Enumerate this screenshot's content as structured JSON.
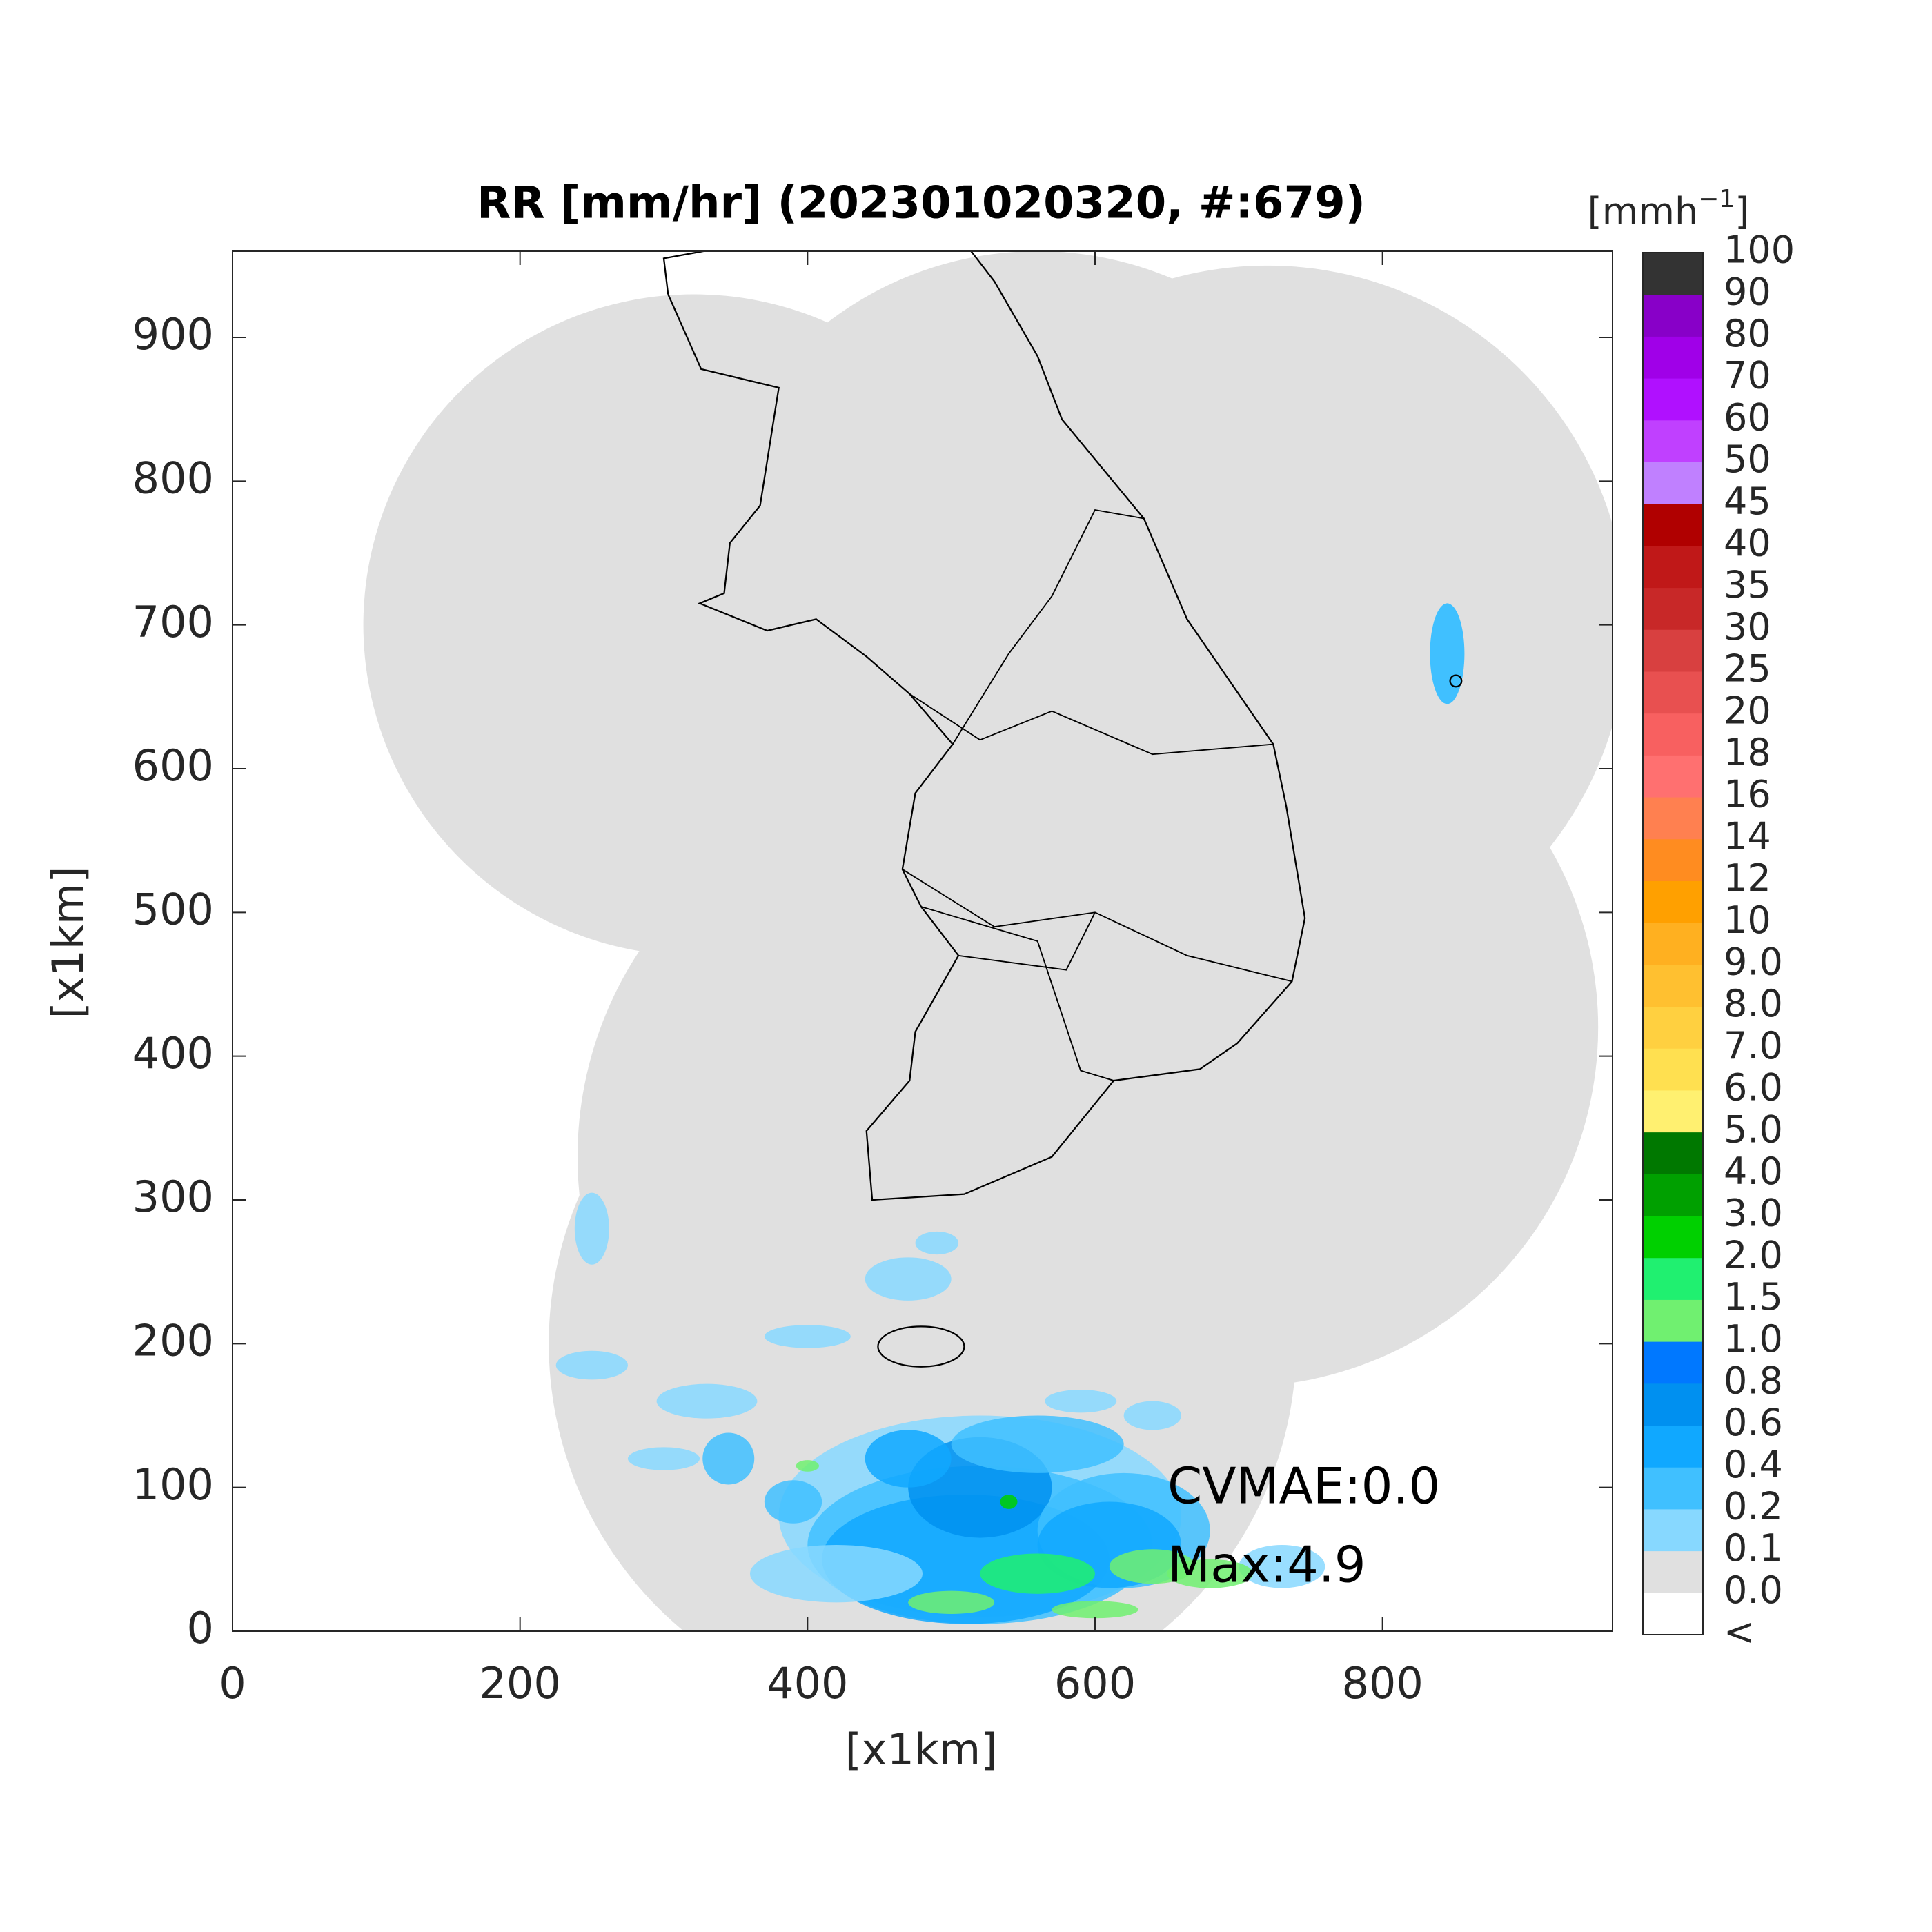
{
  "chart_data": {
    "type": "map",
    "title": "RR [mm/hr] (202301020320, #:679)",
    "xlabel": "[x1km]",
    "ylabel": "[x1km]",
    "xlim": [
      0,
      960
    ],
    "ylim": [
      0,
      960
    ],
    "xticks": [
      0,
      200,
      400,
      600,
      800
    ],
    "yticks": [
      0,
      100,
      200,
      300,
      400,
      500,
      600,
      700,
      800,
      900
    ],
    "colorbar": {
      "unit": "[mmh",
      "unit_exponent": "−1",
      "unit_close": "]",
      "labels": [
        "<",
        "0.0",
        "0.1",
        "0.2",
        "0.4",
        "0.6",
        "0.8",
        "1.0",
        "1.5",
        "2.0",
        "3.0",
        "4.0",
        "5.0",
        "6.0",
        "7.0",
        "8.0",
        "9.0",
        "10",
        "12",
        "14",
        "16",
        "18",
        "20",
        "25",
        "30",
        "35",
        "40",
        "45",
        "50",
        "60",
        "70",
        "80",
        "90",
        "100"
      ],
      "colors": [
        "#ffffff",
        "#e0e0e0",
        "#87d8ff",
        "#40c0ff",
        "#10a8ff",
        "#0090f0",
        "#0078ff",
        "#70f070",
        "#20f070",
        "#00d000",
        "#00a000",
        "#007800",
        "#fff070",
        "#ffe050",
        "#ffd040",
        "#ffc030",
        "#ffb020",
        "#ffa000",
        "#ff8c20",
        "#ff8050",
        "#ff7070",
        "#f86060",
        "#e85050",
        "#d84040",
        "#c82828",
        "#c01818",
        "#b00000",
        "#c080ff",
        "#c040ff",
        "#b010ff",
        "#a000e8",
        "#8800c8",
        "#333333"
      ]
    },
    "annotations": [
      "CVMAE:0.0",
      "Max:4.9"
    ]
  }
}
